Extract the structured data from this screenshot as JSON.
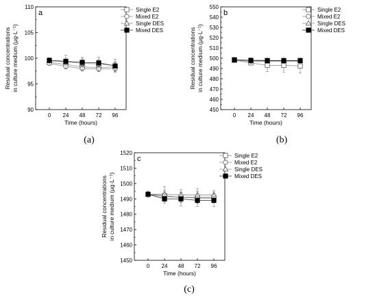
{
  "chart_data": [
    {
      "type": "line",
      "panel_label": "a",
      "caption": "(a)",
      "xlabel": "Time (hours)",
      "ylabel": [
        "Residual concentrations",
        "in culture medium (μg·L⁻¹)"
      ],
      "x": [
        0,
        24,
        48,
        72,
        96
      ],
      "xticks": [
        "0",
        "24",
        "48",
        "72",
        "96"
      ],
      "xlim": [
        -20,
        112
      ],
      "ylim": [
        90,
        110
      ],
      "yticks": [
        "90",
        "95",
        "100",
        "105",
        "110"
      ],
      "legend_position": "top-right",
      "series": [
        {
          "name": "Single E2",
          "marker": "square-open",
          "values": [
            99.2,
            98.8,
            98.3,
            98.2,
            98.3
          ],
          "errors": [
            0.5,
            0.7,
            0.6,
            0.6,
            0.9
          ]
        },
        {
          "name": "Mixed E2",
          "marker": "circle-open",
          "values": [
            99.0,
            98.4,
            98.0,
            97.9,
            98.0
          ],
          "errors": [
            0.4,
            0.5,
            0.5,
            0.5,
            0.7
          ]
        },
        {
          "name": "Single DES",
          "marker": "triangle-open",
          "values": [
            99.5,
            99.3,
            99.0,
            98.9,
            98.6
          ],
          "errors": [
            0.6,
            1.3,
            1.2,
            1.3,
            1.2
          ]
        },
        {
          "name": "Mixed DES",
          "marker": "square-filled",
          "values": [
            99.6,
            99.4,
            99.2,
            99.1,
            98.5
          ],
          "errors": [
            0.4,
            0.6,
            0.7,
            0.7,
            0.8
          ]
        }
      ]
    },
    {
      "type": "line",
      "panel_label": "b",
      "caption": "(b)",
      "xlabel": "Time (hours)",
      "ylabel": [
        "Residual concentrations",
        "in culture medium (μg·L⁻¹)"
      ],
      "x": [
        0,
        24,
        48,
        72,
        96
      ],
      "xticks": [
        "0",
        "24",
        "48",
        "72",
        "96"
      ],
      "xlim": [
        -20,
        112
      ],
      "ylim": [
        450,
        550
      ],
      "yticks": [
        "450",
        "460",
        "470",
        "480",
        "490",
        "500",
        "510",
        "520",
        "530",
        "540",
        "550"
      ],
      "legend_position": "top-right",
      "series": [
        {
          "name": "Single E2",
          "marker": "square-open",
          "values": [
            498,
            495.5,
            493,
            493,
            492.5
          ],
          "errors": [
            1.0,
            2.0,
            6.0,
            6.5,
            7.0
          ]
        },
        {
          "name": "Mixed E2",
          "marker": "circle-open",
          "values": [
            498,
            497,
            497,
            497,
            497
          ],
          "errors": [
            0.8,
            1.5,
            2.0,
            2.0,
            2.0
          ]
        },
        {
          "name": "Single DES",
          "marker": "triangle-open",
          "values": [
            498,
            497.5,
            497.5,
            497.5,
            497.5
          ],
          "errors": [
            0.8,
            1.5,
            2.0,
            2.0,
            2.0
          ]
        },
        {
          "name": "Mixed DES",
          "marker": "square-filled",
          "values": [
            498.5,
            498,
            497.8,
            497.8,
            497.8
          ],
          "errors": [
            0.8,
            1.2,
            1.5,
            1.5,
            1.5
          ]
        }
      ]
    },
    {
      "type": "line",
      "panel_label": "c",
      "caption": "(c)",
      "xlabel": "Time (hours)",
      "ylabel": [
        "Residual concentrations",
        "in culture medium (μg·L⁻¹)"
      ],
      "x": [
        0,
        24,
        48,
        72,
        96
      ],
      "xticks": [
        "0",
        "24",
        "48",
        "72",
        "96"
      ],
      "xlim": [
        -20,
        112
      ],
      "ylim": [
        1450,
        1520
      ],
      "yticks": [
        "1450",
        "1460",
        "1470",
        "1480",
        "1490",
        "1500",
        "1510",
        "1520"
      ],
      "legend_position": "top-right",
      "series": [
        {
          "name": "Single E2",
          "marker": "square-open",
          "values": [
            1493,
            1492,
            1491,
            1491,
            1491
          ],
          "errors": [
            2.0,
            3.5,
            3.5,
            4.0,
            3.5
          ]
        },
        {
          "name": "Mixed E2",
          "marker": "circle-open",
          "values": [
            1493,
            1491.5,
            1491,
            1490.5,
            1490.5
          ],
          "errors": [
            1.5,
            3.0,
            3.0,
            3.0,
            3.0
          ]
        },
        {
          "name": "Single DES",
          "marker": "triangle-open",
          "values": [
            1493,
            1493,
            1492.5,
            1492.5,
            1492.5
          ],
          "errors": [
            1.5,
            5.0,
            3.5,
            4.0,
            3.0
          ]
        },
        {
          "name": "Mixed DES",
          "marker": "square-filled",
          "values": [
            1493,
            1490,
            1490,
            1489,
            1489
          ],
          "errors": [
            1.5,
            3.0,
            4.5,
            4.0,
            4.0
          ]
        }
      ]
    }
  ]
}
